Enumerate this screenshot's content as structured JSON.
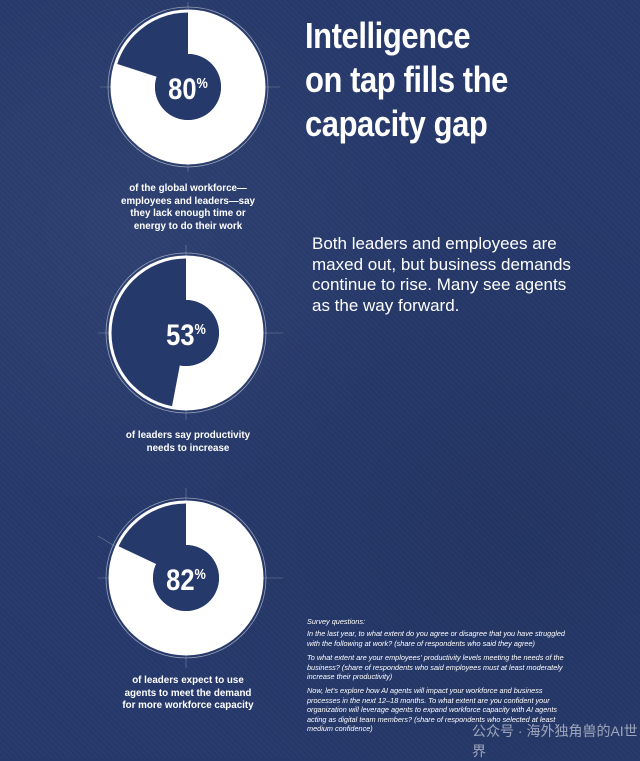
{
  "title_lines": [
    "Intelligence",
    "on tap fills the",
    "capacity gap"
  ],
  "intro": "Both leaders and employees are maxed out, but business demands continue to rise. Many see agents as the way forward.",
  "chart_data": [
    {
      "type": "pie",
      "value": 80,
      "value_label": "80",
      "unit": "%",
      "caption_lines": [
        "of the global workforce—",
        "employees and leaders—say",
        "they lack enough time or",
        "energy to do their work"
      ]
    },
    {
      "type": "pie",
      "value": 53,
      "value_label": "53",
      "unit": "%",
      "caption_lines": [
        "of leaders say productivity",
        "needs to increase"
      ]
    },
    {
      "type": "pie",
      "value": 82,
      "value_label": "82",
      "unit": "%",
      "caption_lines": [
        "of leaders expect to use",
        "agents to meet the demand",
        "for more workforce capacity"
      ]
    }
  ],
  "footnotes": {
    "heading": "Survey questions:",
    "items": [
      "In the last year, to what extent do you agree or disagree that you have struggled with the following at work? (share of respondents who said they agree)",
      "To what extent are your employees' productivity levels meeting the needs of the business? (share of respondents who said employees must at least moderately increase their productivity)",
      "Now, let's explore how AI agents will impact your workforce and business processes in the next 12–18 months. To what extent are you confident your organization will leverage agents to expand workforce capacity with AI agents acting as digital team members? (share of respondents who selected at least medium confidence)"
    ]
  },
  "watermark": "公众号 · 海外独角兽的AI世界",
  "colors": {
    "background": "#26396b",
    "donut_fill": "#ffffff",
    "donut_remainder": "#26396b",
    "text": "#ffffff"
  }
}
